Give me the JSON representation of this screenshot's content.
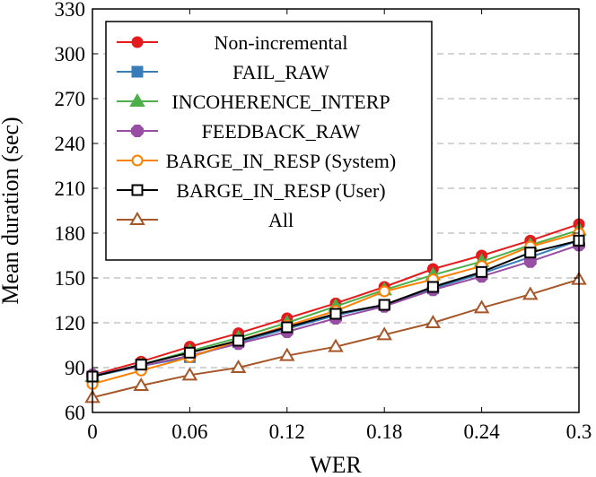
{
  "chart_data": {
    "type": "line",
    "title": "",
    "xlabel": "WER",
    "ylabel": "Mean duration (sec)",
    "xlim": [
      0,
      0.3
    ],
    "ylim": [
      60,
      330
    ],
    "xticks": [
      "0",
      "0.06",
      "0.12",
      "0.18",
      "0.24",
      "0.3"
    ],
    "xtick_values": [
      0,
      0.06,
      0.12,
      0.18,
      0.24,
      0.3
    ],
    "yticks": [
      "60",
      "90",
      "120",
      "150",
      "180",
      "210",
      "240",
      "270",
      "300",
      "330"
    ],
    "ytick_values": [
      60,
      90,
      120,
      150,
      180,
      210,
      240,
      270,
      300,
      330
    ],
    "grid": "horizontal dashed",
    "legend_position": "top-left",
    "x": [
      0,
      0.03,
      0.06,
      0.09,
      0.12,
      0.15,
      0.18,
      0.21,
      0.24,
      0.27,
      0.3
    ],
    "series": [
      {
        "name": "Non-incremental",
        "color": "#e41a1c",
        "marker": "circle-filled",
        "values": [
          85,
          94,
          104,
          113,
          123,
          133,
          144,
          156,
          165,
          175,
          186
        ]
      },
      {
        "name": "FAIL_RAW",
        "color": "#377eb8",
        "marker": "square-filled",
        "values": [
          84,
          91,
          97,
          107,
          116,
          125,
          132,
          143,
          153,
          164,
          175
        ]
      },
      {
        "name": "INCOHERENCE_INTERP",
        "color": "#4daf4a",
        "marker": "triangle-filled",
        "values": [
          84,
          92,
          101,
          110,
          120,
          131,
          142,
          152,
          161,
          172,
          182
        ]
      },
      {
        "name": "FEEDBACK_RAW",
        "color": "#984ea3",
        "marker": "octagon-filled",
        "values": [
          85,
          91,
          98,
          106,
          114,
          123,
          131,
          142,
          151,
          161,
          172
        ]
      },
      {
        "name": "BARGE_IN_RESP (System)",
        "color": "#ff7f00",
        "marker": "circle-open",
        "values": [
          79,
          88,
          97,
          108,
          118,
          128,
          141,
          149,
          158,
          171,
          180
        ]
      },
      {
        "name": "BARGE_IN_RESP (User)",
        "color": "#000000",
        "marker": "square-open",
        "values": [
          84,
          92,
          100,
          108,
          117,
          126,
          132,
          144,
          154,
          167,
          175
        ]
      },
      {
        "name": "All",
        "color": "#a65628",
        "marker": "triangle-open",
        "values": [
          70,
          78,
          85,
          90,
          98,
          104,
          112,
          120,
          130,
          139,
          149
        ]
      }
    ]
  }
}
